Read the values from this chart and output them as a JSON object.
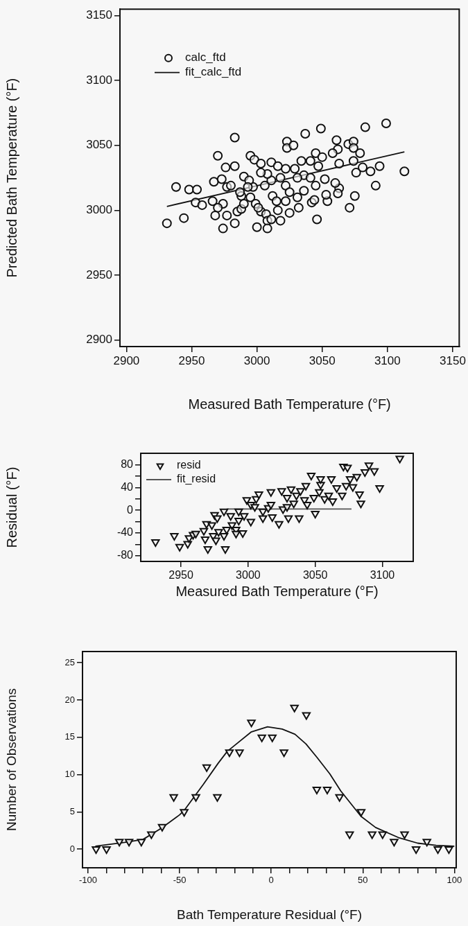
{
  "chart_data": [
    {
      "type": "scatter",
      "xlabel": "Measured Bath Temperature (°F)",
      "ylabel": "Predicted Bath Temperature (°F)",
      "xlim": [
        2895,
        3155
      ],
      "ylim": [
        2895,
        3155
      ],
      "xticks": [
        2900,
        2950,
        3000,
        3050,
        3100,
        3150
      ],
      "yticks": [
        2900,
        2950,
        3000,
        3050,
        3100,
        3150
      ],
      "grid": false,
      "legend": "top left",
      "series": [
        {
          "name": "calc_ftd",
          "type": "scatter",
          "marker": "circle",
          "color": "#111111",
          "x": [
            2931,
            2944,
            2938,
            2948,
            2954,
            2953,
            2958,
            2966,
            2967,
            2973,
            2970,
            2983,
            2976,
            2983,
            2974,
            2970,
            2968,
            2977,
            2974,
            2983,
            2977,
            2980,
            2985,
            2988,
            2990,
            2995,
            2998,
            3003,
            3011,
            2988,
            2995,
            2997,
            2999,
            3003,
            3007,
            3008,
            3011,
            3008,
            3000,
            3016,
            3018,
            3025,
            3032,
            3042,
            3044,
            3046,
            3023,
            3023,
            3028,
            3037,
            3049,
            3061,
            3062,
            3070,
            3074,
            3074,
            3079,
            3083,
            3099,
            3113,
            3094,
            3087,
            3081,
            3076,
            3074,
            3091,
            3075,
            3071,
            3063,
            3062,
            3054,
            3053,
            3060,
            3063,
            3045,
            3041,
            3050,
            3058,
            3047,
            3052,
            3045,
            3036,
            3034,
            3029,
            3022,
            3016,
            3018,
            3022,
            3025,
            3022,
            3031,
            3036,
            3011,
            3008,
            3003,
            3006,
            3012,
            2994,
            2993,
            2987,
            2990,
            3015,
            3001,
            3031,
            3041
          ],
          "values": [
            2990,
            2994,
            3018,
            3016,
            3016,
            3006,
            3004,
            3007,
            3022,
            3024,
            3042,
            3056,
            3033,
            3034,
            3005,
            3002,
            2996,
            2996,
            2986,
            2990,
            3018,
            3019,
            2999,
            3001,
            3026,
            3042,
            3039,
            3036,
            3037,
            3011,
            3010,
            3018,
            3005,
            2999,
            2997,
            2992,
            2993,
            2986,
            2987,
            3000,
            2992,
            2998,
            3002,
            3006,
            3008,
            2993,
            3053,
            3048,
            3050,
            3059,
            3063,
            3054,
            3047,
            3051,
            3053,
            3048,
            3044,
            3064,
            3067,
            3030,
            3034,
            3030,
            3033,
            3029,
            3038,
            3019,
            3011,
            3002,
            3017,
            3013,
            3007,
            3012,
            3021,
            3036,
            3044,
            3038,
            3041,
            3044,
            3034,
            3024,
            3019,
            3027,
            3038,
            3032,
            3032,
            3034,
            3025,
            3019,
            3014,
            3007,
            3010,
            3015,
            3023,
            3028,
            3029,
            3019,
            3011,
            3023,
            3018,
            3014,
            3005,
            3007,
            3002,
            3025,
            3025
          ]
        },
        {
          "name": "fit_calc_ftd",
          "type": "line",
          "marker": "none",
          "color": "#111111",
          "x": [
            2931,
            3113
          ],
          "values": [
            3003,
            3045
          ]
        }
      ]
    },
    {
      "type": "scatter",
      "xlabel": "Measured Bath Temperature (°F)",
      "ylabel": "Residual (°F)",
      "xlim": [
        2920,
        3123
      ],
      "ylim": [
        -90,
        100
      ],
      "xticks": [
        2950,
        3000,
        3050,
        3100
      ],
      "yticks": [
        -80,
        {
          "value": -60,
          "label": null
        },
        -40,
        {
          "value": -20,
          "label": null
        },
        0,
        {
          "value": 20,
          "label": null
        },
        40,
        {
          "value": 60,
          "label": null
        },
        80
      ],
      "grid": false,
      "legend": "top left",
      "series": [
        {
          "name": "resid",
          "type": "scatter",
          "marker": "triangle",
          "color": "#111111",
          "x": [
            2931,
            2945,
            2949,
            2955,
            2956,
            2959,
            2961,
            2967,
            2968,
            2970,
            2969,
            2973,
            2974,
            2976,
            2975,
            2977,
            2978,
            2982,
            2983,
            2982,
            2984,
            2987,
            2988,
            2991,
            2993,
            2996,
            2997,
            2999,
            3002,
            3002,
            3006,
            3008,
            3011,
            3011,
            3015,
            3017,
            3018,
            3023,
            3025,
            3026,
            3029,
            3030,
            3032,
            3034,
            3038,
            3036,
            3039,
            3043,
            3042,
            3044,
            3047,
            3049,
            3050,
            3053,
            3054,
            3054,
            3057,
            3060,
            3062,
            3063,
            3066,
            3070,
            3071,
            3074,
            3073,
            3076,
            3078,
            3081,
            3083,
            3084,
            3087,
            3090,
            3094,
            3098,
            3113,
            2993,
            3005,
            3017,
            3029,
            2991
          ],
          "values": [
            -56,
            -45,
            -64,
            -59,
            -49,
            -43,
            -41,
            -36,
            -51,
            -68,
            -24,
            -26,
            -45,
            -53,
            -8,
            -14,
            -38,
            -45,
            -68,
            -2,
            -34,
            -10,
            -26,
            -34,
            -18,
            -40,
            -10,
            18,
            -20,
            10,
            20,
            28,
            -2,
            -14,
            4,
            32,
            -12,
            -24,
            34,
            2,
            22,
            -14,
            37,
            12,
            -14,
            26,
            34,
            43,
            18,
            10,
            61,
            22,
            -6,
            32,
            45,
            55,
            20,
            26,
            55,
            16,
            39,
            26,
            77,
            75,
            43,
            55,
            41,
            59,
            28,
            12,
            67,
            79,
            69,
            39,
            91,
            -2,
            6,
            10,
            6,
            -41
          ]
        },
        {
          "name": "fit_resid",
          "type": "line",
          "marker": "none",
          "color": "#555555",
          "x": [
            2984,
            3077
          ],
          "values": [
            2,
            2
          ]
        }
      ]
    },
    {
      "type": "scatter",
      "xlabel": "Bath Temperature Residual (°F)",
      "ylabel": "Number of Observations",
      "xlim": [
        -103,
        101
      ],
      "ylim": [
        -2.5,
        26.5
      ],
      "xticks": [
        -100,
        {
          "value": -90,
          "label": null
        },
        {
          "value": -80,
          "label": null
        },
        {
          "value": -70,
          "label": null
        },
        {
          "value": -60,
          "label": null
        },
        -50,
        {
          "value": -40,
          "label": null
        },
        {
          "value": -30,
          "label": null
        },
        {
          "value": -20,
          "label": null
        },
        {
          "value": -10,
          "label": null
        },
        0,
        {
          "value": 10,
          "label": null
        },
        {
          "value": 20,
          "label": null
        },
        {
          "value": 30,
          "label": null
        },
        {
          "value": 40,
          "label": null
        },
        50,
        {
          "value": 60,
          "label": null
        },
        {
          "value": 70,
          "label": null
        },
        {
          "value": 80,
          "label": null
        },
        {
          "value": 90,
          "label": null
        },
        100
      ],
      "yticks": [
        0,
        5,
        10,
        15,
        20,
        25
      ],
      "grid": false,
      "series": [
        {
          "type": "scatter",
          "marker": "triangle",
          "color": "#111111",
          "x": [
            -95.6,
            -89.9,
            -82.9,
            -77.6,
            -70.9,
            -65.4,
            -59.5,
            -53.2,
            -47.5,
            -41.1,
            -35.2,
            -29.4,
            -22.8,
            -17.3,
            -10.8,
            -5.1,
            0.6,
            7.0,
            12.7,
            19.2,
            24.9,
            30.6,
            37.3,
            42.8,
            49.1,
            55.1,
            60.8,
            67.1,
            72.8,
            79.1,
            85,
            91,
            97
          ],
          "values": [
            0,
            0,
            1,
            1,
            1,
            2,
            3,
            7,
            5,
            7,
            11,
            7,
            13,
            13,
            17,
            15,
            15,
            13,
            19,
            18,
            8,
            8,
            7,
            2,
            5,
            2,
            2,
            1,
            2,
            0,
            1,
            0,
            0
          ]
        },
        {
          "type": "line",
          "marker": "none",
          "color": "#111111",
          "x": [
            -96,
            -80,
            -70,
            -60,
            -50,
            -47.5,
            -37,
            -29,
            -24,
            -19,
            -11,
            -2,
            6,
            13,
            19,
            25,
            32,
            38,
            49,
            57,
            70,
            80,
            90,
            100
          ],
          "values": [
            0.4,
            0.9,
            1.3,
            2.8,
            4.6,
            5.2,
            8.7,
            11.5,
            13.1,
            14.1,
            15.7,
            16.4,
            16.1,
            15.4,
            14.1,
            12.3,
            10.1,
            7.8,
            4.4,
            2.9,
            1.5,
            0.8,
            0.5,
            0.4
          ]
        }
      ]
    }
  ]
}
